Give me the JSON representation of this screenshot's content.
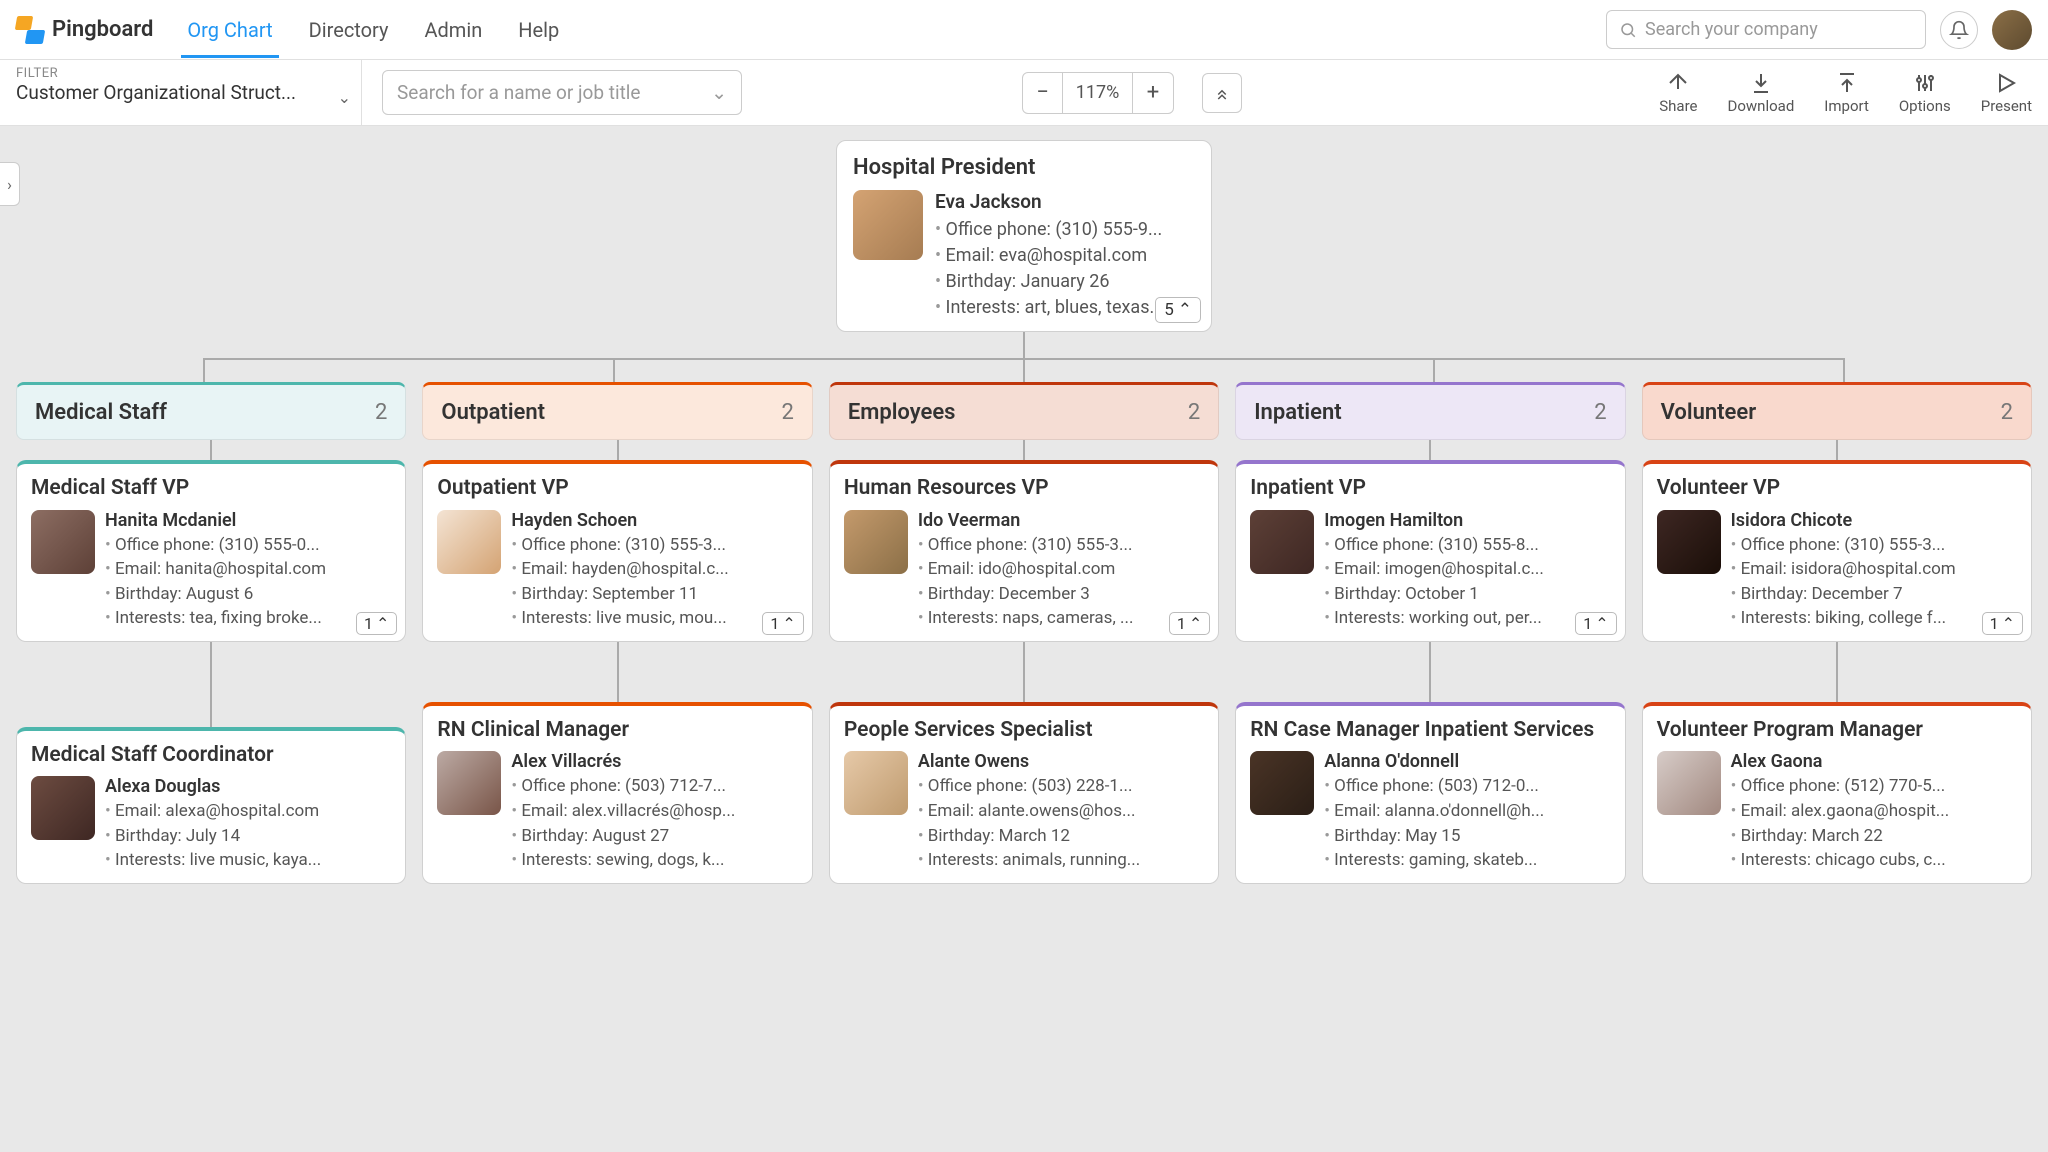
{
  "brand": "Pingboard",
  "nav": [
    "Org Chart",
    "Directory",
    "Admin",
    "Help"
  ],
  "nav_active_index": 0,
  "search_company_placeholder": "Search your company",
  "filter_label": "FILTER",
  "filter_value": "Customer Organizational Struct...",
  "search_name_placeholder": "Search for a name or job title",
  "zoom": "117%",
  "actions": [
    "Share",
    "Download",
    "Import",
    "Options",
    "Present"
  ],
  "root": {
    "title": "Hospital President",
    "name": "Eva Jackson",
    "lines": [
      "Office phone: (310) 555-9...",
      "Email: eva@hospital.com",
      "Birthday: January 26",
      "Interests: art, blues, texas..."
    ],
    "count": "5"
  },
  "departments": [
    {
      "name": "Medical Staff",
      "count": "2",
      "bg": "#e8f4f5",
      "accent": "#4db6ac",
      "vp": {
        "title": "Medical Staff VP",
        "name": "Hanita Mcdaniel",
        "lines": [
          "Office phone: (310) 555-0...",
          "Email: hanita@hospital.com",
          "Birthday: August 6",
          "Interests: tea, fixing broke..."
        ],
        "count": "1"
      },
      "child": {
        "title": "Medical Staff Coordinator",
        "name": "Alexa Douglas",
        "lines": [
          "Email: alexa@hospital.com",
          "Birthday: July 14",
          "Interests: live music, kaya..."
        ]
      }
    },
    {
      "name": "Outpatient",
      "count": "2",
      "bg": "#fce8dc",
      "accent": "#e65100",
      "vp": {
        "title": "Outpatient VP",
        "name": "Hayden Schoen",
        "lines": [
          "Office phone: (310) 555-3...",
          "Email: hayden@hospital.c...",
          "Birthday: September 11",
          "Interests: live music, mou..."
        ],
        "count": "1"
      },
      "child": {
        "title": "RN Clinical Manager",
        "name": "Alex Villacrés",
        "lines": [
          "Office phone: (503) 712-7...",
          "Email: alex.villacrés@hosp...",
          "Birthday: August 27",
          "Interests: sewing, dogs, k..."
        ]
      }
    },
    {
      "name": "Employees",
      "count": "2",
      "bg": "#f5ddd4",
      "accent": "#bf360c",
      "vp": {
        "title": "Human Resources VP",
        "name": "Ido Veerman",
        "lines": [
          "Office phone: (310) 555-3...",
          "Email: ido@hospital.com",
          "Birthday: December 3",
          "Interests: naps, cameras, ..."
        ],
        "count": "1"
      },
      "child": {
        "title": "People Services Specialist",
        "name": "Alante Owens",
        "lines": [
          "Office phone: (503) 228-1...",
          "Email: alante.owens@hos...",
          "Birthday: March 12",
          "Interests: animals, running..."
        ]
      }
    },
    {
      "name": "Inpatient",
      "count": "2",
      "bg": "#ede7f6",
      "accent": "#9575cd",
      "vp": {
        "title": "Inpatient VP",
        "name": "Imogen Hamilton",
        "lines": [
          "Office phone: (310) 555-8...",
          "Email: imogen@hospital.c...",
          "Birthday: October 1",
          "Interests: working out, per..."
        ],
        "count": "1"
      },
      "child": {
        "title": "RN Case Manager Inpatient Services",
        "name": "Alanna O'donnell",
        "lines": [
          "Office phone: (503) 712-0...",
          "Email: alanna.o'donnell@h...",
          "Birthday: May 15",
          "Interests: gaming, skateb..."
        ]
      }
    },
    {
      "name": "Volunteer",
      "count": "2",
      "bg": "#f9d9cd",
      "accent": "#d84315",
      "vp": {
        "title": "Volunteer VP",
        "name": "Isidora Chicote",
        "lines": [
          "Office phone: (310) 555-3...",
          "Email: isidora@hospital.com",
          "Birthday: December 7",
          "Interests: biking, college f..."
        ],
        "count": "1"
      },
      "child": {
        "title": "Volunteer Program Manager",
        "name": "Alex Gaona",
        "lines": [
          "Office phone: (512) 770-5...",
          "Email: alex.gaona@hospit...",
          "Birthday: March 22",
          "Interests: chicago cubs, c..."
        ]
      }
    }
  ]
}
